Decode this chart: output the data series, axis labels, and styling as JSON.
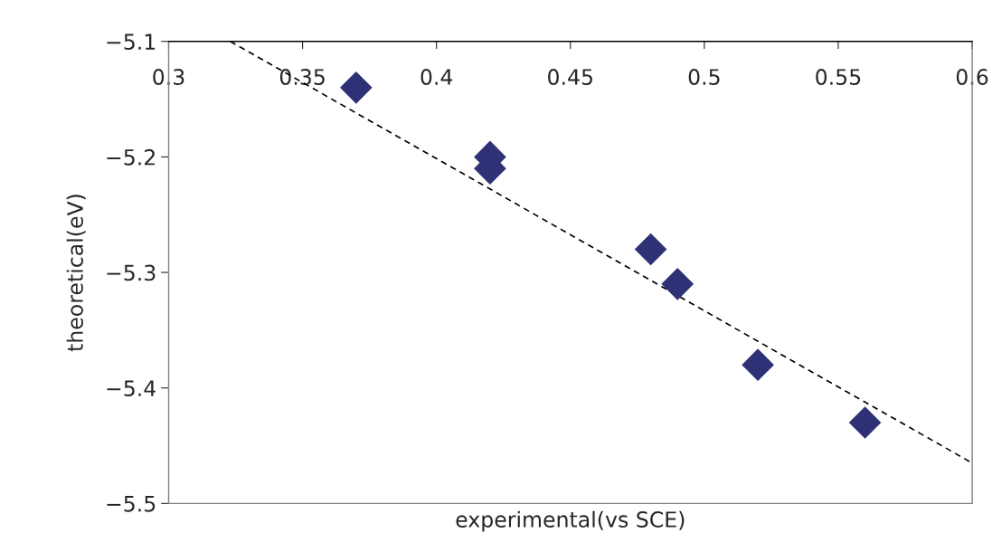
{
  "chart_data": {
    "type": "scatter",
    "xlabel": "experimental(vs SCE)",
    "ylabel": "theoretical(eV)",
    "xlim": [
      0.3,
      0.6
    ],
    "ylim": [
      -5.5,
      -5.1
    ],
    "xticks": [
      0.3,
      0.35,
      0.4,
      0.45,
      0.5,
      0.55,
      0.6
    ],
    "yticks": [
      -5.5,
      -5.4,
      -5.3,
      -5.2,
      -5.1
    ],
    "grid": false,
    "legend": false,
    "marker": "diamond",
    "series": [
      {
        "color": "#2e3175",
        "x": [
          0.37,
          0.42,
          0.42,
          0.48,
          0.49,
          0.52,
          0.56
        ],
        "values": [
          -5.14,
          -5.2,
          -5.21,
          -5.28,
          -5.31,
          -5.38,
          -5.43
        ]
      },
      {
        "type": "line",
        "color": "#000000",
        "line_style": "dashed",
        "marker": "none",
        "x": [
          0.323,
          0.6
        ],
        "values": [
          -5.1,
          -5.465
        ]
      }
    ]
  }
}
